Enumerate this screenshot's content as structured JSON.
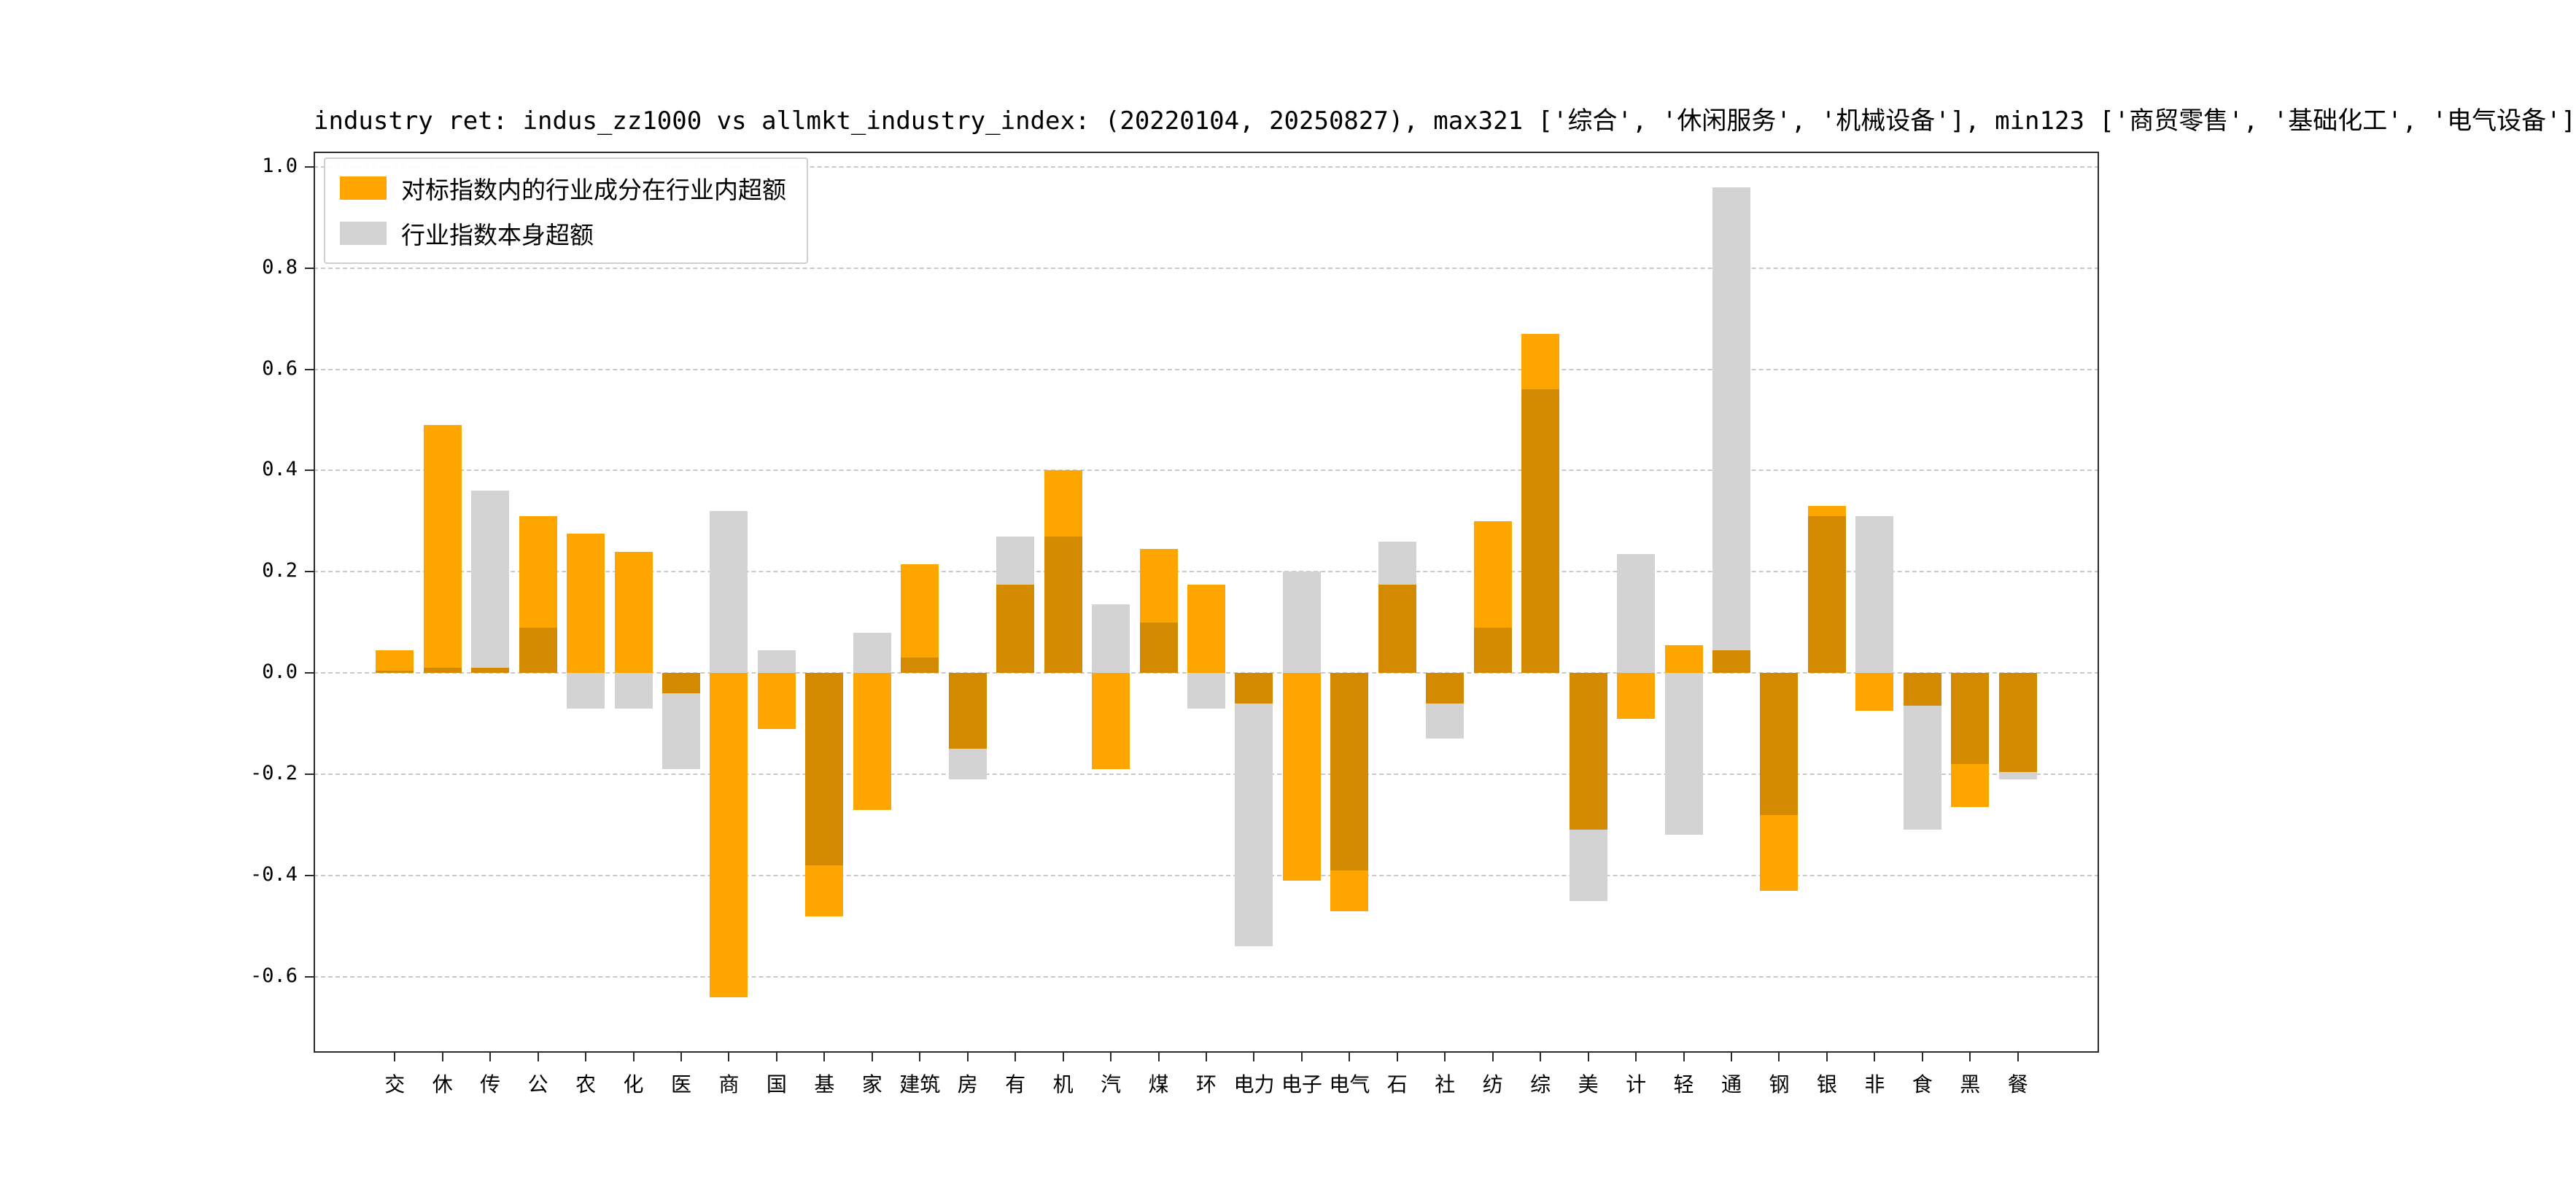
{
  "title": "industry ret: indus_zz1000 vs allmkt_industry_index: (20220104, 20250827), max321 ['综合', '休闲服务', '机械设备'], min123 ['商贸零售', '基础化工', '电气设备']",
  "legend": [
    {
      "label": "对标指数内的行业成分在行业内超额",
      "color": "#FFA500"
    },
    {
      "label": "行业指数本身超额",
      "color": "#D3D3D3"
    }
  ],
  "chart_data": {
    "type": "bar",
    "title": "industry ret: indus_zz1000 vs allmkt_industry_index: (20220104, 20250827), max321 ['综合', '休闲服务', '机械设备'], min123 ['商贸零售', '基础化工', '电气设备']",
    "categories": [
      "交",
      "休",
      "传",
      "公",
      "农",
      "化",
      "医",
      "商",
      "国",
      "基",
      "家",
      "建筑",
      "房",
      "有",
      "机",
      "汽",
      "煤",
      "环",
      "电力",
      "电子",
      "电气",
      "石",
      "社",
      "纺",
      "综",
      "美",
      "计",
      "轻",
      "通",
      "钢",
      "银",
      "非",
      "食",
      "黑",
      "餐"
    ],
    "series": [
      {
        "name": "对标指数内的行业成分在行业内超额",
        "color": "#FFA500",
        "values": [
          0.045,
          0.49,
          0.01,
          0.31,
          0.275,
          0.24,
          -0.04,
          -0.64,
          -0.11,
          -0.48,
          -0.27,
          0.215,
          -0.15,
          0.175,
          0.4,
          -0.19,
          0.245,
          0.175,
          -0.06,
          -0.41,
          -0.47,
          0.175,
          -0.06,
          0.3,
          0.67,
          -0.31,
          -0.09,
          0.055,
          0.045,
          -0.43,
          0.33,
          -0.075,
          -0.065,
          -0.265,
          -0.195
        ]
      },
      {
        "name": "行业指数本身超额",
        "color": "#D3D3D3",
        "values": [
          0.005,
          0.01,
          0.36,
          0.09,
          -0.07,
          -0.07,
          -0.19,
          0.32,
          0.045,
          -0.38,
          0.08,
          0.03,
          -0.21,
          0.27,
          0.27,
          0.135,
          0.1,
          -0.07,
          -0.54,
          0.2,
          -0.39,
          0.26,
          -0.13,
          0.09,
          0.56,
          -0.45,
          0.235,
          -0.32,
          0.96,
          -0.28,
          0.31,
          0.31,
          -0.31,
          -0.18,
          -0.21
        ]
      }
    ],
    "overlap_color": "#D38A00",
    "xlabel": "",
    "ylabel": "",
    "ylim": [
      -0.75,
      1.03
    ],
    "yticks": [
      1.0,
      0.8,
      0.6,
      0.4,
      0.2,
      0.0,
      -0.2,
      -0.4,
      -0.6
    ],
    "grid": "dashed-horizontal",
    "legend_position": "upper-left"
  }
}
